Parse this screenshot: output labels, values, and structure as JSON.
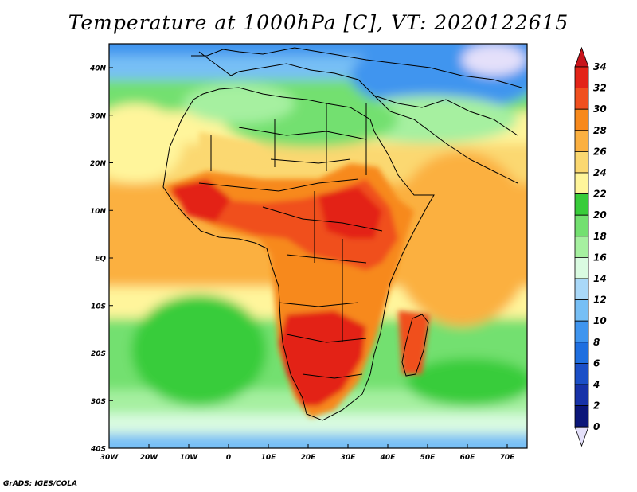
{
  "title": "Temperature at 1000hPa [C], VT: 2020122615",
  "credit": "GrADS: IGES/COLA",
  "map": {
    "lat_labels": [
      "40N",
      "30N",
      "20N",
      "10N",
      "EQ",
      "10S",
      "20S",
      "30S",
      "40S"
    ],
    "lon_labels": [
      "30W",
      "20W",
      "10W",
      "0",
      "10E",
      "20E",
      "30E",
      "40E",
      "50E",
      "60E",
      "70E"
    ]
  },
  "colorbar": {
    "labels": [
      "34",
      "32",
      "30",
      "28",
      "26",
      "24",
      "22",
      "20",
      "18",
      "16",
      "14",
      "12",
      "10",
      "8",
      "6",
      "4",
      "2",
      "0"
    ],
    "colors": [
      "#e32418",
      "#f0501f",
      "#f7891c",
      "#fbb041",
      "#fbd871",
      "#fff59b",
      "#38cc3a",
      "#73e070",
      "#a6f0a0",
      "#dafbe1",
      "#a9d8f8",
      "#77bff5",
      "#3f95ef",
      "#1f6fe0",
      "#1b4fc7",
      "#1732a8",
      "#0b1679"
    ],
    "top_color": "#c8141b",
    "bottom_color": "#e4e0fa"
  }
}
